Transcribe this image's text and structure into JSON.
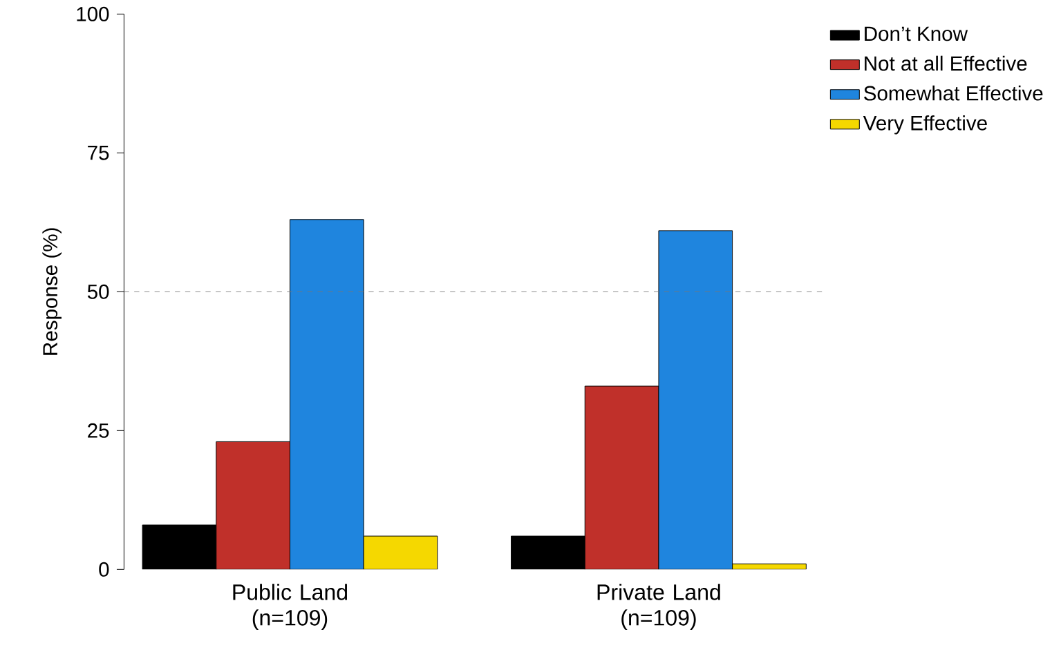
{
  "chart_data": {
    "type": "bar",
    "ylabel": "Response (%)",
    "categories": [
      "Public Land (n=109)",
      "Private Land (n=109)"
    ],
    "series": [
      {
        "name": "Don’t Know",
        "color": "#000000",
        "values": [
          8,
          6
        ]
      },
      {
        "name": "Not at all Effective",
        "color": "#c0302a",
        "values": [
          23,
          33
        ]
      },
      {
        "name": "Somewhat Effective",
        "color": "#1f85de",
        "values": [
          63,
          61
        ]
      },
      {
        "name": "Very Effective",
        "color": "#f5d800",
        "values": [
          6,
          1
        ]
      }
    ],
    "ylim": [
      0,
      100
    ],
    "yticks": [
      0,
      25,
      50,
      75,
      100
    ],
    "ref_lines": [
      {
        "axis": "y",
        "value": 50,
        "color": "#777777",
        "line_style": "dashed"
      }
    ],
    "grid": false,
    "legend": "top right"
  }
}
